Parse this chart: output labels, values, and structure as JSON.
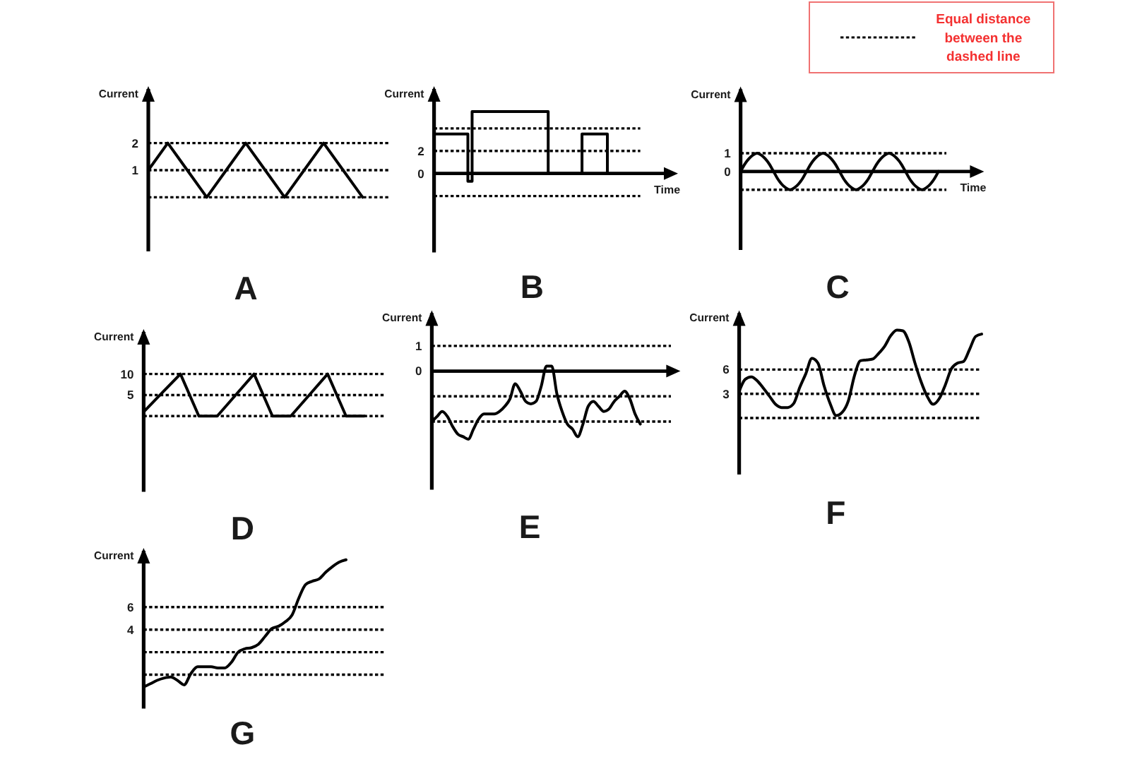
{
  "chart_data": [
    {
      "type": "other",
      "annotations": [
        "Equal distance between the dashed line"
      ]
    },
    {
      "type": "line",
      "title": "A",
      "ylabel": "Current",
      "categories": [
        null,
        null,
        null,
        null,
        null,
        null,
        null,
        null,
        null,
        null,
        null,
        null
      ],
      "values": [
        1,
        2,
        1,
        0,
        1,
        2,
        1,
        0,
        1,
        2,
        1,
        0
      ],
      "color": "#000000",
      "ylim": [
        -2,
        4
      ],
      "yticks": [
        1,
        2
      ],
      "ref_lines": [
        {
          "axis": "y",
          "value": 2,
          "line_style": "dashed",
          "color": "#000000"
        },
        {
          "axis": "y",
          "value": 1,
          "line_style": "dashed",
          "color": "#000000"
        },
        {
          "axis": "y",
          "value": 0,
          "line_style": "dashed",
          "color": "#000000"
        }
      ]
    },
    {
      "type": "step",
      "title": "B",
      "ylabel": "Current",
      "xlabel": "Time",
      "categories": [
        null,
        null,
        null,
        null,
        null,
        null,
        null,
        null,
        null,
        null,
        null,
        null,
        null,
        null,
        null,
        null,
        null,
        null,
        null,
        null,
        null,
        null,
        null,
        null,
        null,
        null,
        null,
        null,
        null,
        null,
        null,
        null,
        null,
        null,
        null,
        null,
        null,
        null,
        null,
        null,
        null,
        null
      ],
      "values": [
        3.5,
        3.5,
        3.5,
        3.5,
        3.5,
        3.5,
        3.5,
        3.5,
        -0.7,
        5.5,
        5.5,
        5.5,
        5.5,
        5.5,
        5.5,
        5.5,
        5.5,
        5.5,
        5.5,
        5.5,
        5.5,
        5.5,
        5.5,
        5.5,
        5.5,
        5.5,
        5.5,
        0,
        0,
        0,
        0,
        0,
        0,
        0,
        0,
        3.5,
        3.5,
        3.5,
        3.5,
        3.5,
        3.5,
        0
      ],
      "color": "#000000",
      "ylim": [
        -7,
        7.5
      ],
      "yticks": [
        0,
        2
      ],
      "ref_lines": [
        {
          "axis": "y",
          "value": 4,
          "line_style": "dashed",
          "color": "#000000"
        },
        {
          "axis": "y",
          "value": 2,
          "line_style": "dashed",
          "color": "#000000"
        },
        {
          "axis": "y",
          "value": 0,
          "line_style": "solid",
          "color": "#000000"
        },
        {
          "axis": "y",
          "value": -2,
          "line_style": "dashed",
          "color": "#000000"
        }
      ]
    },
    {
      "type": "line",
      "title": "C",
      "ylabel": "Current",
      "xlabel": "Time",
      "categories": [
        null,
        null,
        null,
        null,
        null,
        null,
        null,
        null,
        null,
        null,
        null,
        null,
        null,
        null,
        null,
        null,
        null,
        null,
        null,
        null,
        null,
        null,
        null,
        null,
        null,
        null,
        null,
        null,
        null,
        null,
        null,
        null,
        null,
        null,
        null,
        null,
        null,
        null,
        null,
        null,
        null,
        null,
        null,
        null,
        null,
        null,
        null,
        null,
        null
      ],
      "values": [
        0,
        0.4,
        0.7,
        0.9,
        1,
        0.9,
        0.7,
        0.4,
        0,
        -0.4,
        -0.7,
        -0.9,
        -1,
        -0.9,
        -0.7,
        -0.4,
        0,
        0.4,
        0.7,
        0.9,
        1,
        0.9,
        0.7,
        0.4,
        0,
        -0.4,
        -0.7,
        -0.9,
        -1,
        -0.9,
        -0.7,
        -0.4,
        0,
        0.4,
        0.7,
        0.9,
        1,
        0.9,
        0.7,
        0.4,
        0,
        -0.4,
        -0.7,
        -0.9,
        -1,
        -0.9,
        -0.7,
        -0.4,
        0
      ],
      "color": "#000000",
      "ylim": [
        -4.3,
        4.5
      ],
      "yticks": [
        0,
        1
      ],
      "ref_lines": [
        {
          "axis": "y",
          "value": 1,
          "line_style": "dashed",
          "color": "#000000"
        },
        {
          "axis": "y",
          "value": 0,
          "line_style": "solid",
          "color": "#000000"
        },
        {
          "axis": "y",
          "value": -1,
          "line_style": "dashed",
          "color": "#000000"
        }
      ]
    },
    {
      "type": "line",
      "title": "D",
      "ylabel": "Current",
      "categories": [
        null,
        null,
        null,
        null,
        null,
        null,
        null,
        null,
        null,
        null,
        null,
        null,
        null
      ],
      "values": [
        1,
        5.5,
        10,
        0,
        0,
        5,
        10,
        0,
        0,
        5,
        10,
        0,
        0
      ],
      "color": "#000000",
      "ylim": [
        -18,
        20
      ],
      "yticks": [
        5,
        10
      ],
      "ref_lines": [
        {
          "axis": "y",
          "value": 10,
          "line_style": "dashed",
          "color": "#000000"
        },
        {
          "axis": "y",
          "value": 5,
          "line_style": "dashed",
          "color": "#000000"
        },
        {
          "axis": "y",
          "value": 0,
          "line_style": "dashed",
          "color": "#000000"
        }
      ]
    },
    {
      "type": "line",
      "title": "E",
      "ylabel": "Current",
      "categories": [
        null,
        null,
        null,
        null,
        null,
        null,
        null,
        null,
        null,
        null,
        null,
        null,
        null,
        null,
        null,
        null,
        null,
        null,
        null,
        null,
        null,
        null,
        null,
        null,
        null,
        null,
        null,
        null,
        null,
        null,
        null,
        null,
        null,
        null,
        null,
        null,
        null,
        null,
        null,
        null,
        null
      ],
      "values": [
        -2,
        -1.8,
        -1.6,
        -1.8,
        -2.2,
        -2.5,
        -2.6,
        -2.7,
        -2.3,
        -1.9,
        -1.7,
        -1.7,
        -1.7,
        -1.6,
        -1.4,
        -1.1,
        -0.5,
        -0.8,
        -1.2,
        -1.3,
        -1.2,
        -0.6,
        0.2,
        0.2,
        -0.9,
        -1.6,
        -2.1,
        -2.3,
        -2.6,
        -2.1,
        -1.4,
        -1.2,
        -1.4,
        -1.6,
        -1.5,
        -1.2,
        -1,
        -0.8,
        -1.1,
        -1.7,
        -2.1
      ],
      "color": "#000000",
      "ylim": [
        -4.7,
        2.3
      ],
      "yticks": [
        0,
        1
      ],
      "ref_lines": [
        {
          "axis": "y",
          "value": 1,
          "line_style": "dashed",
          "color": "#000000"
        },
        {
          "axis": "y",
          "value": 0,
          "line_style": "solid",
          "color": "#000000"
        },
        {
          "axis": "y",
          "value": -1,
          "line_style": "dashed",
          "color": "#000000"
        },
        {
          "axis": "y",
          "value": -2,
          "line_style": "dashed",
          "color": "#000000"
        }
      ]
    },
    {
      "type": "line",
      "title": "F",
      "ylabel": "Current",
      "categories": [
        null,
        null,
        null,
        null,
        null,
        null,
        null,
        null,
        null,
        null,
        null,
        null,
        null,
        null,
        null,
        null,
        null,
        null,
        null,
        null,
        null,
        null,
        null,
        null,
        null,
        null,
        null,
        null,
        null,
        null,
        null,
        null,
        null,
        null,
        null,
        null,
        null,
        null,
        null,
        null,
        null
      ],
      "values": [
        3.3,
        4.8,
        5.1,
        4.6,
        3.7,
        2.7,
        1.7,
        1.3,
        1.3,
        1.8,
        3.8,
        5.5,
        7.4,
        6.8,
        4,
        1.8,
        0.3,
        0.7,
        2.1,
        5.2,
        7.1,
        7.2,
        7.3,
        8,
        8.9,
        10.2,
        10.9,
        10.8,
        9.4,
        6.8,
        4.5,
        2.7,
        1.7,
        2.4,
        4.1,
        6.1,
        6.8,
        7,
        8.5,
        10.1,
        10.4
      ],
      "color": "#000000",
      "ylim": [
        -7,
        13
      ],
      "yticks": [
        3,
        6
      ],
      "ref_lines": [
        {
          "axis": "y",
          "value": 6,
          "line_style": "dashed",
          "color": "#000000"
        },
        {
          "axis": "y",
          "value": 3,
          "line_style": "dashed",
          "color": "#000000"
        },
        {
          "axis": "y",
          "value": 0,
          "line_style": "dashed",
          "color": "#000000"
        }
      ]
    },
    {
      "type": "line",
      "title": "G",
      "ylabel": "Current",
      "categories": [
        null,
        null,
        null,
        null,
        null,
        null,
        null,
        null,
        null,
        null,
        null,
        null,
        null,
        null,
        null,
        null,
        null,
        null,
        null,
        null,
        null,
        null,
        null,
        null,
        null,
        null,
        null,
        null,
        null,
        null,
        null
      ],
      "values": [
        -1.1,
        -0.8,
        -0.5,
        -0.3,
        -0.2,
        -0.5,
        -0.9,
        0.1,
        0.7,
        0.7,
        0.7,
        0.6,
        0.6,
        1.1,
        2,
        2.3,
        2.4,
        2.7,
        3.4,
        4.1,
        4.3,
        4.7,
        5.3,
        6.8,
        8,
        8.3,
        8.5,
        9.1,
        9.6,
        10,
        10.2
      ],
      "color": "#000000",
      "ylim": [
        -3,
        11
      ],
      "yticks": [
        4,
        6
      ],
      "ref_lines": [
        {
          "axis": "y",
          "value": 6,
          "line_style": "dashed",
          "color": "#000000"
        },
        {
          "axis": "y",
          "value": 4,
          "line_style": "dashed",
          "color": "#000000"
        },
        {
          "axis": "y",
          "value": 2,
          "line_style": "dashed",
          "color": "#000000"
        },
        {
          "axis": "y",
          "value": 0,
          "line_style": "dashed",
          "color": "#000000"
        }
      ]
    }
  ]
}
